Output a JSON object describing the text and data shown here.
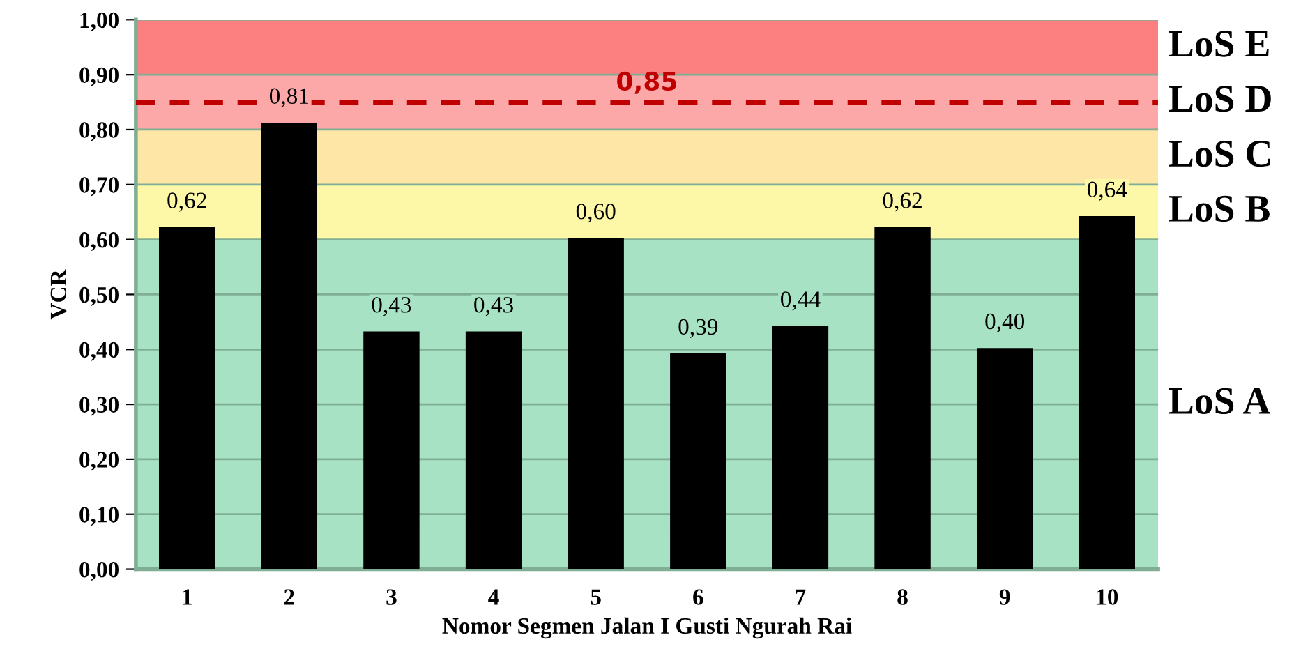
{
  "chart_data": {
    "type": "bar",
    "xlabel": "Nomor Segmen Jalan I Gusti Ngurah Rai",
    "ylabel": "VCR",
    "categories": [
      "1",
      "2",
      "3",
      "4",
      "5",
      "6",
      "7",
      "8",
      "9",
      "10"
    ],
    "values": [
      0.62,
      0.81,
      0.43,
      0.43,
      0.6,
      0.39,
      0.44,
      0.62,
      0.4,
      0.64
    ],
    "color": "#000000",
    "value_labels": [
      "0,62",
      "0,81",
      "0,43",
      "0,43",
      "0,60",
      "0,39",
      "0,44",
      "0,62",
      "0,40",
      "0,64"
    ],
    "ylim": [
      0,
      1
    ],
    "yticks": [
      {
        "value": 0,
        "label": "0,00"
      },
      {
        "value": 0.1,
        "label": "0,10"
      },
      {
        "value": 0.2,
        "label": "0,20"
      },
      {
        "value": 0.3,
        "label": "0,30"
      },
      {
        "value": 0.4,
        "label": "0,40"
      },
      {
        "value": 0.5,
        "label": "0,50"
      },
      {
        "value": 0.6,
        "label": "0,60"
      },
      {
        "value": 0.7,
        "label": "0,70"
      },
      {
        "value": 0.8,
        "label": "0,80"
      },
      {
        "value": 0.9,
        "label": "0,90"
      },
      {
        "value": 1.0,
        "label": "1,00"
      }
    ],
    "grid": "y",
    "bands": [
      {
        "axis": "y",
        "from": 0,
        "to": 0.6,
        "label": "LoS A",
        "color": "#a8e2c4"
      },
      {
        "axis": "y",
        "from": 0.6,
        "to": 0.7,
        "label": "LoS B",
        "color": "#fdf8a8"
      },
      {
        "axis": "y",
        "from": 0.7,
        "to": 0.8,
        "label": "LoS C",
        "color": "#fde6a6"
      },
      {
        "axis": "y",
        "from": 0.8,
        "to": 0.9,
        "label": "LoS D",
        "color": "#fda8a8"
      },
      {
        "axis": "y",
        "from": 0.9,
        "to": 1.0,
        "label": "LoS E",
        "color": "#fd8080"
      }
    ],
    "ref_lines": [
      {
        "axis": "y",
        "value": 0.85,
        "label": "0,85",
        "color": "#c00000",
        "line_style": "dashed"
      }
    ]
  }
}
